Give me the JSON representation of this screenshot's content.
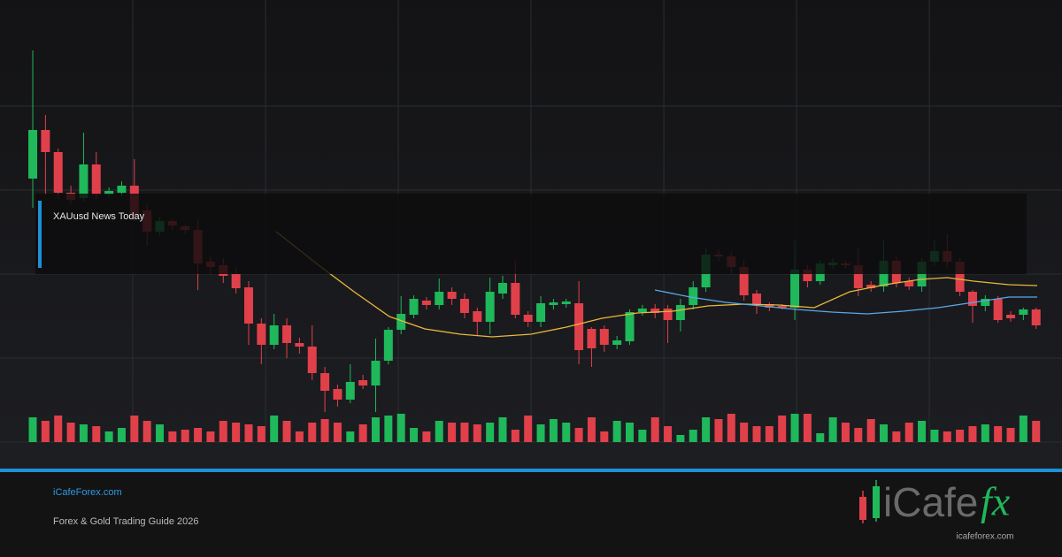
{
  "chart_data": {
    "type": "candlestick",
    "annotation": "XAUusd News Today",
    "x": [
      0,
      1,
      2,
      3,
      4,
      5,
      6,
      7,
      8,
      9,
      10,
      11,
      12,
      13,
      14,
      15,
      16,
      17,
      18,
      19,
      20,
      21,
      22,
      23,
      24,
      25,
      26,
      27,
      28,
      29,
      30,
      31,
      32,
      33,
      34,
      35,
      36,
      37,
      38,
      39,
      40,
      41,
      42,
      43,
      44,
      45,
      46,
      47,
      48,
      49,
      50,
      51,
      52,
      53,
      54,
      55,
      56,
      57,
      58,
      59,
      60,
      61,
      62,
      63,
      64,
      65,
      66,
      67,
      68,
      69,
      70,
      71,
      72,
      73,
      74,
      75,
      76,
      77,
      78,
      79
    ],
    "open": [
      298,
      353,
      328,
      282,
      276,
      314,
      280,
      282,
      290,
      262,
      238,
      250,
      244,
      240,
      204,
      200,
      190,
      175,
      134,
      110,
      132,
      112,
      108,
      78,
      60,
      48,
      70,
      64,
      92,
      127,
      144,
      160,
      155,
      170,
      162,
      148,
      136,
      168,
      180,
      144,
      136,
      155,
      156,
      157,
      128,
      128,
      110,
      114,
      147,
      151,
      151,
      138,
      155,
      175,
      212,
      210,
      198,
      168,
      156,
      154,
      152,
      195,
      182,
      200,
      202,
      200,
      178,
      176,
      205,
      182,
      176,
      204,
      216,
      204,
      170,
      154,
      162,
      144,
      144,
      150
    ],
    "high": [
      443,
      370,
      332,
      290,
      350,
      328,
      288,
      295,
      320,
      270,
      254,
      253,
      246,
      252,
      210,
      208,
      197,
      182,
      140,
      145,
      140,
      118,
      132,
      85,
      65,
      88,
      76,
      117,
      130,
      165,
      166,
      164,
      185,
      175,
      168,
      152,
      186,
      188,
      205,
      148,
      165,
      162,
      162,
      182,
      130,
      132,
      120,
      150,
      155,
      156,
      155,
      162,
      182,
      220,
      218,
      215,
      205,
      172,
      158,
      156,
      228,
      200,
      206,
      208,
      205,
      220,
      182,
      228,
      210,
      186,
      208,
      228,
      235,
      208,
      172,
      166,
      165,
      148,
      152,
      152
    ],
    "low": [
      265,
      280,
      275,
      270,
      272,
      275,
      277,
      278,
      250,
      222,
      234,
      240,
      236,
      172,
      190,
      180,
      168,
      110,
      88,
      105,
      95,
      100,
      70,
      34,
      40,
      44,
      60,
      34,
      88,
      122,
      140,
      150,
      150,
      155,
      140,
      120,
      122,
      162,
      140,
      130,
      130,
      150,
      152,
      88,
      85,
      102,
      105,
      110,
      143,
      140,
      112,
      125,
      150,
      170,
      205,
      190,
      160,
      145,
      148,
      150,
      138,
      175,
      178,
      196,
      196,
      165,
      170,
      170,
      175,
      172,
      170,
      200,
      198,
      165,
      135,
      148,
      135,
      136,
      138,
      128
    ],
    "close": [
      353,
      328,
      282,
      274,
      314,
      280,
      284,
      290,
      255,
      238,
      250,
      245,
      240,
      202,
      198,
      188,
      174,
      134,
      110,
      132,
      112,
      108,
      78,
      58,
      48,
      68,
      64,
      92,
      127,
      145,
      162,
      155,
      170,
      162,
      146,
      136,
      170,
      180,
      144,
      136,
      157,
      158,
      159,
      104,
      106,
      110,
      115,
      147,
      151,
      146,
      138,
      155,
      175,
      212,
      210,
      198,
      166,
      156,
      152,
      152,
      195,
      182,
      202,
      203,
      200,
      174,
      174,
      205,
      180,
      176,
      204,
      216,
      204,
      170,
      154,
      162,
      138,
      140,
      150,
      132
    ],
    "volume": [
      28,
      24,
      30,
      22,
      20,
      18,
      12,
      16,
      30,
      24,
      20,
      12,
      14,
      16,
      12,
      24,
      22,
      20,
      18,
      30,
      24,
      12,
      22,
      26,
      22,
      12,
      20,
      28,
      30,
      32,
      16,
      12,
      24,
      22,
      22,
      20,
      22,
      28,
      14,
      30,
      20,
      26,
      22,
      16,
      28,
      12,
      24,
      22,
      14,
      28,
      18,
      8,
      14,
      28,
      26,
      32,
      22,
      18,
      18,
      30,
      32,
      32,
      10,
      28,
      22,
      16,
      26,
      20,
      12,
      22,
      24,
      14,
      12,
      14,
      18,
      20,
      18,
      16,
      30,
      24
    ],
    "up_color": "#1fb85a",
    "down_color": "#e0404a",
    "lines": [
      {
        "color": "#e9b83a",
        "x": [
          19.16,
          22.51,
          25.3,
          28.08,
          30.87,
          33.66,
          36.17,
          39.23,
          42.02,
          44.81,
          47.6,
          50.38,
          53.17,
          55.96,
          58.75,
          61.53,
          64.32,
          67.11,
          69.9,
          71.99,
          74.08,
          76.86,
          79.09
        ],
        "values": [
          238,
          200,
          170,
          142,
          128,
          122,
          119,
          122,
          130,
          140,
          146,
          148,
          154,
          156,
          155,
          152,
          170,
          178,
          184,
          186,
          182,
          178,
          177
        ]
      },
      {
        "color": "#5aa9e6",
        "x": [
          48.99,
          51.78,
          54.56,
          57.35,
          60.14,
          62.93,
          65.71,
          68.5,
          71.29,
          74.08,
          76.86,
          79.09
        ],
        "values": [
          172,
          164,
          158,
          154,
          150,
          147,
          145,
          148,
          152,
          158,
          164,
          164
        ]
      }
    ],
    "xlim": [
      -2.58,
      81.04
    ],
    "xticks": [
      7.87,
      18.33,
      28.78,
      39.23,
      49.69,
      60.14,
      70.59
    ],
    "ylim": [
      0,
      480
    ],
    "yticks": [
      0,
      95,
      190,
      285,
      380
    ],
    "vlim": [
      0,
      100
    ],
    "grid": true
  },
  "footer": {
    "site": "iCafeForex.com",
    "subtitle": "Forex & Gold Trading Guide 2026"
  },
  "logo": {
    "text": "iCafe",
    "accent": "fx",
    "url": "icafeforex.com"
  }
}
